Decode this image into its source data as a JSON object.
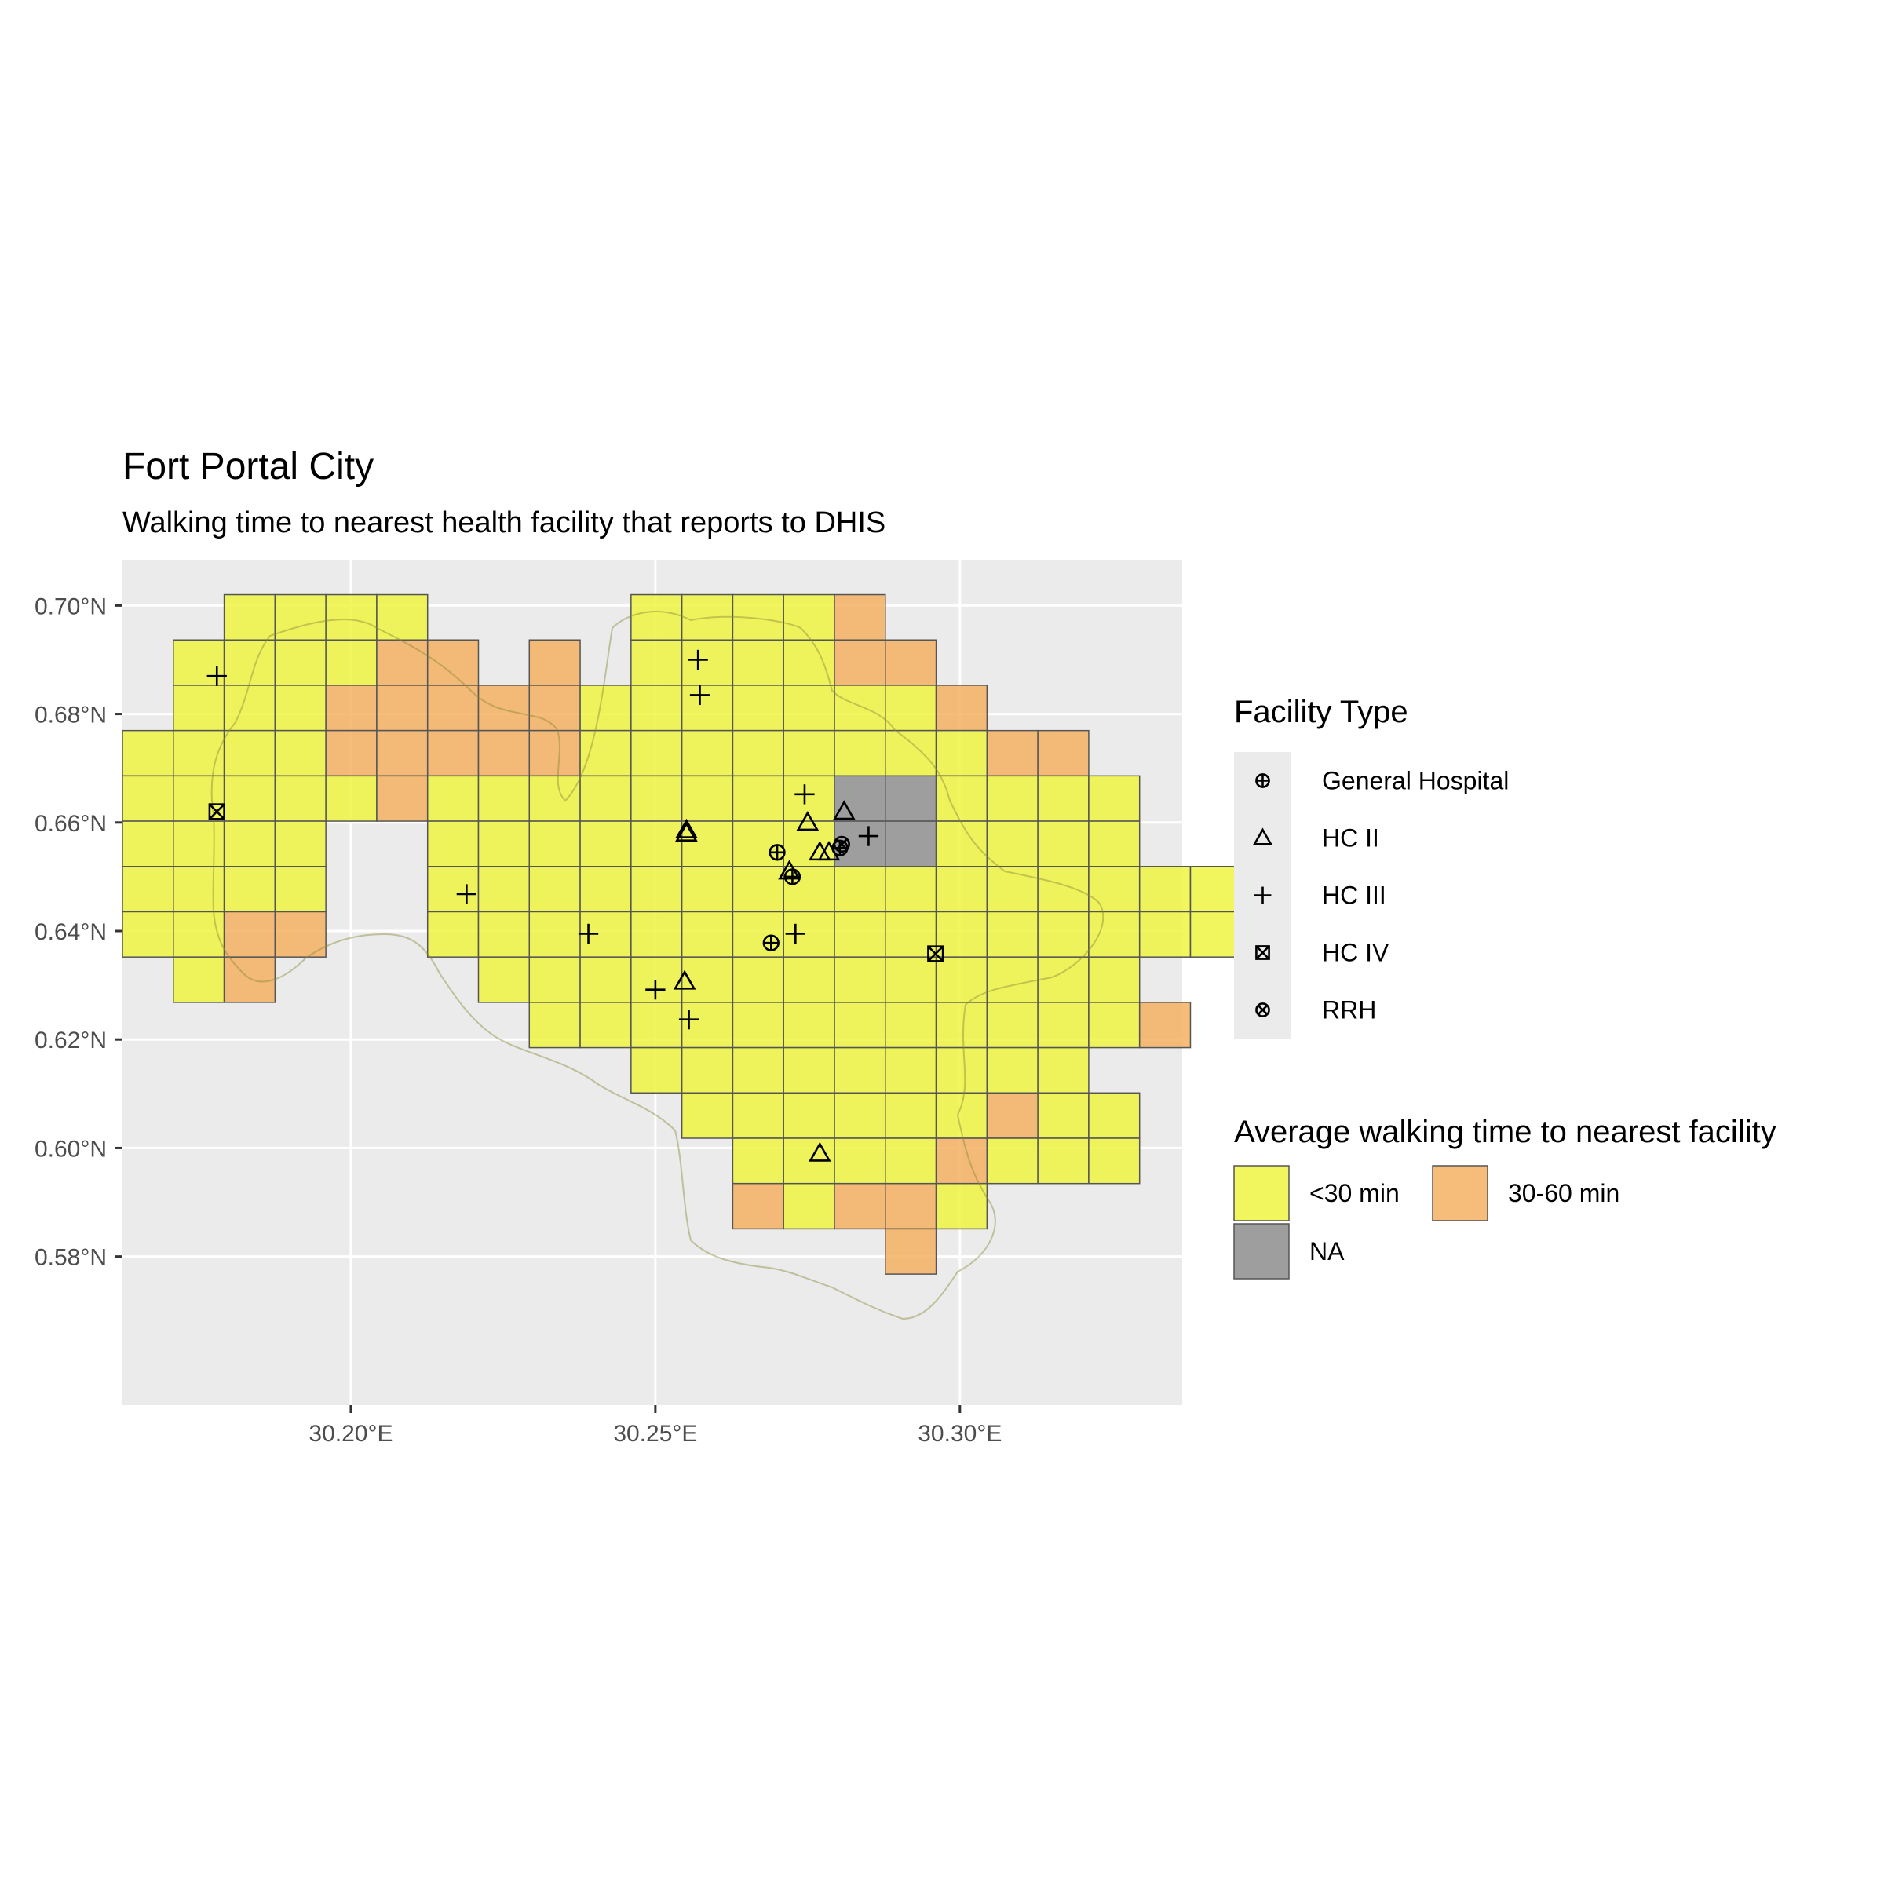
{
  "title": "Fort Portal City",
  "subtitle": "Walking time to nearest health facility that reports to DHIS",
  "colors": {
    "panel": "#ebebeb",
    "grid": "#ffffff",
    "lt30": "#eff542",
    "m30_60": "#f5b062",
    "na": "#9e9e9e",
    "cell_border": "#555555"
  },
  "chart_data": {
    "type": "heatmap",
    "title": "Fort Portal City",
    "subtitle": "Walking time to nearest health facility that reports to DHIS",
    "xlim": [
      30.1625,
      30.3365
    ],
    "ylim": [
      0.5526,
      0.7083
    ],
    "x_ticks": [
      {
        "value": 30.2,
        "label": "30.20°E"
      },
      {
        "value": 30.25,
        "label": "30.25°E"
      },
      {
        "value": 30.3,
        "label": "30.30°E"
      }
    ],
    "y_ticks": [
      {
        "value": 0.7,
        "label": "0.70°N"
      },
      {
        "value": 0.68,
        "label": "0.68°N"
      },
      {
        "value": 0.66,
        "label": "0.66°N"
      },
      {
        "value": 0.64,
        "label": "0.64°N"
      },
      {
        "value": 0.62,
        "label": "0.62°N"
      },
      {
        "value": 0.6,
        "label": "0.60°N"
      },
      {
        "value": 0.58,
        "label": "0.58°N"
      }
    ],
    "grid": true,
    "cell_origin": [
      30.1625,
      0.702
    ],
    "cell_size": 0.00835,
    "cell_rows": [
      {
        "row": 0,
        "c": "..aaaa....aaaab......."
      },
      {
        "row": 1,
        "c": ".aaaabb.b.aaaabb......"
      },
      {
        "row": 2,
        "c": ".aaabbbbbaaaaaaab....."
      },
      {
        "row": 3,
        "c": "aaaabbbbbaaaaaaaabb..."
      },
      {
        "row": 4,
        "c": "aaaaabaaaaaaaannaaaa.."
      },
      {
        "row": 5,
        "c": "aaaa..aaaaaaaannaaaa.."
      },
      {
        "row": 6,
        "c": "aaaa..aaaaaaaaaaaaaaaa"
      },
      {
        "row": 7,
        "c": "aabb..aaaaaaaaaaaaaaaa"
      },
      {
        "row": 8,
        "c": ".ab....aaaaaaaaaaaaa.."
      },
      {
        "row": 9,
        "c": "........aaaaaaaaaaaab."
      },
      {
        "row": 10,
        "c": "..........aaaaaaaaa..."
      },
      {
        "row": 11,
        "c": "...........aaaaaabaa.."
      },
      {
        "row": 12,
        "c": "............aaaabaaa.."
      },
      {
        "row": 13,
        "c": "............babba....."
      },
      {
        "row": 14,
        "c": "...............b......"
      }
    ],
    "cell_classes": {
      "a": "<30 min",
      "b": "30-60 min",
      "n": "NA"
    },
    "facilities": [
      {
        "type": "General Hospital",
        "lon": 30.27,
        "lat": 0.6545
      },
      {
        "type": "General Hospital",
        "lon": 30.2725,
        "lat": 0.65
      },
      {
        "type": "General Hospital",
        "lon": 30.269,
        "lat": 0.6378
      },
      {
        "type": "General Hospital",
        "lon": 30.2803,
        "lat": 0.6553
      },
      {
        "type": "HC II",
        "lon": 30.2551,
        "lat": 0.6586
      },
      {
        "type": "HC II",
        "lon": 30.2551,
        "lat": 0.658
      },
      {
        "type": "HC II",
        "lon": 30.275,
        "lat": 0.66
      },
      {
        "type": "HC II",
        "lon": 30.281,
        "lat": 0.662
      },
      {
        "type": "HC II",
        "lon": 30.272,
        "lat": 0.651
      },
      {
        "type": "HC II",
        "lon": 30.277,
        "lat": 0.6545
      },
      {
        "type": "HC II",
        "lon": 30.2785,
        "lat": 0.6545
      },
      {
        "type": "HC II",
        "lon": 30.2548,
        "lat": 0.6307
      },
      {
        "type": "HC II",
        "lon": 30.277,
        "lat": 0.599
      },
      {
        "type": "HC III",
        "lon": 30.178,
        "lat": 0.687
      },
      {
        "type": "HC III",
        "lon": 30.257,
        "lat": 0.69
      },
      {
        "type": "HC III",
        "lon": 30.2573,
        "lat": 0.6835
      },
      {
        "type": "HC III",
        "lon": 30.2745,
        "lat": 0.6652
      },
      {
        "type": "HC III",
        "lon": 30.285,
        "lat": 0.6575
      },
      {
        "type": "HC III",
        "lon": 30.219,
        "lat": 0.6468
      },
      {
        "type": "HC III",
        "lon": 30.239,
        "lat": 0.6395
      },
      {
        "type": "HC III",
        "lon": 30.273,
        "lat": 0.6395
      },
      {
        "type": "HC III",
        "lon": 30.25,
        "lat": 0.6292
      },
      {
        "type": "HC III",
        "lon": 30.2555,
        "lat": 0.6237
      },
      {
        "type": "HC IV",
        "lon": 30.178,
        "lat": 0.662
      },
      {
        "type": "HC IV",
        "lon": 30.296,
        "lat": 0.6358
      },
      {
        "type": "RRH",
        "lon": 30.2806,
        "lat": 0.656
      }
    ],
    "legends": {
      "facility": {
        "title": "Facility Type",
        "items": [
          {
            "label": "General Hospital",
            "shape": "circle-plus"
          },
          {
            "label": "HC II",
            "shape": "triangle"
          },
          {
            "label": "HC III",
            "shape": "plus"
          },
          {
            "label": "HC IV",
            "shape": "square-x"
          },
          {
            "label": "RRH",
            "shape": "circle-x"
          }
        ]
      },
      "walking": {
        "title": "Average walking time to nearest facility",
        "items": [
          {
            "label": "<30 min",
            "class": "a"
          },
          {
            "label": "30-60 min",
            "class": "b"
          },
          {
            "label": "NA",
            "class": "n"
          }
        ]
      }
    }
  }
}
